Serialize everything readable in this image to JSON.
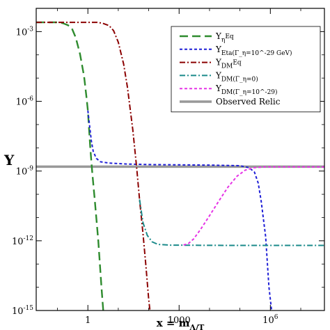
{
  "chart_data": {
    "type": "line",
    "xlabel": "x = m_Λ/T",
    "ylabel": "Y",
    "x_scale": "log",
    "y_scale": "log",
    "xlim": [
      0.02,
      60000000
    ],
    "ylim": [
      1e-15,
      0.01
    ],
    "x_ticks": [
      {
        "value": 1,
        "label": "1"
      },
      {
        "value": 1000,
        "label": "1000"
      },
      {
        "value": 1000000,
        "label": "10^6"
      }
    ],
    "y_ticks": [
      {
        "value": 0.001,
        "label": "10^-3"
      },
      {
        "value": 1e-06,
        "label": "10^-6"
      },
      {
        "value": 1e-09,
        "label": "10^-9"
      },
      {
        "value": 1e-12,
        "label": "10^-12"
      },
      {
        "value": 1e-15,
        "label": "10^-15"
      }
    ],
    "legend_position": "top-right",
    "series": [
      {
        "name": "Y_η^Eq",
        "color": "#2e8b2e",
        "dash": "12,6",
        "width": 2.4,
        "points": [
          [
            0.02,
            0.0025
          ],
          [
            0.1,
            0.0025
          ],
          [
            0.15,
            0.0023
          ],
          [
            0.22,
            0.0019
          ],
          [
            0.3,
            0.00135
          ],
          [
            0.4,
            0.00055
          ],
          [
            0.55,
            0.00011
          ],
          [
            0.75,
            1.2e-05
          ],
          [
            0.9,
            1.5e-06
          ],
          [
            1,
            4e-07
          ],
          [
            1.2,
            1e-08
          ],
          [
            1.4,
            8e-10
          ],
          [
            1.7,
            5e-11
          ],
          [
            2.2,
            1e-12
          ],
          [
            2.8,
            1e-14
          ],
          [
            3.2,
            1e-15
          ]
        ]
      },
      {
        "name": "Y_Eta(Γ_η=10^-29 GeV)",
        "color": "#1f1fd6",
        "dash": "4,3",
        "width": 2,
        "points": [
          [
            1,
            4e-07
          ],
          [
            1.15,
            8e-08
          ],
          [
            1.3,
            2e-08
          ],
          [
            1.5,
            7e-09
          ],
          [
            1.9,
            3.5e-09
          ],
          [
            2.6,
            2.5e-09
          ],
          [
            5,
            2.2e-09
          ],
          [
            20,
            2e-09
          ],
          [
            100,
            1.9e-09
          ],
          [
            1000,
            1.85e-09
          ],
          [
            10000,
            1.8e-09
          ],
          [
            100000,
            1.7e-09
          ],
          [
            200000,
            1.4e-09
          ],
          [
            300000,
            9e-10
          ],
          [
            400000,
            3e-10
          ],
          [
            500000,
            5e-11
          ],
          [
            700000,
            1.5e-12
          ],
          [
            900000,
            1e-14
          ],
          [
            1100000,
            1e-15
          ]
        ]
      },
      {
        "name": "Y_DM^Eq",
        "color": "#8b0000",
        "dash": "8,3,2,3",
        "width": 2,
        "points": [
          [
            0.02,
            0.0025
          ],
          [
            2,
            0.0025
          ],
          [
            3,
            0.0023
          ],
          [
            5,
            0.0018
          ],
          [
            7,
            0.0011
          ],
          [
            10,
            0.00035
          ],
          [
            15,
            4e-05
          ],
          [
            20,
            4e-06
          ],
          [
            30,
            6e-08
          ],
          [
            40,
            1.5e-09
          ],
          [
            50,
            6e-11
          ],
          [
            65,
            2e-12
          ],
          [
            80,
            1e-13
          ],
          [
            100,
            3e-15
          ],
          [
            110,
            1e-15
          ]
        ]
      },
      {
        "name": "Y_DM(Γ_η=0)",
        "color": "#1a8a8a",
        "dash": "8,3,2,3",
        "width": 2,
        "points": [
          [
            50,
            6e-11
          ],
          [
            65,
            6e-12
          ],
          [
            90,
            1.7e-12
          ],
          [
            130,
            9e-13
          ],
          [
            200,
            7e-13
          ],
          [
            500,
            6.5e-13
          ],
          [
            5000,
            6.4e-13
          ],
          [
            100000,
            6.3e-13
          ],
          [
            60000000,
            6.3e-13
          ]
        ]
      },
      {
        "name": "Y_DM(Γ_η=10^-29)",
        "color": "#e633e6",
        "dash": "4,3",
        "width": 2,
        "points": [
          [
            1400,
            6.6e-13
          ],
          [
            2000,
            7.5e-13
          ],
          [
            3000,
            1.2e-12
          ],
          [
            5000,
            3e-12
          ],
          [
            10000,
            1.2e-11
          ],
          [
            20000,
            5e-11
          ],
          [
            40000,
            2e-10
          ],
          [
            80000,
            6e-10
          ],
          [
            150000,
            1.1e-09
          ],
          [
            300000,
            1.4e-09
          ],
          [
            600000,
            1.5e-09
          ],
          [
            2000000,
            1.5e-09
          ],
          [
            60000000,
            1.5e-09
          ]
        ]
      },
      {
        "name": "Observed Relic",
        "color": "#999999",
        "dash": "",
        "width": 3.5,
        "points": [
          [
            0.02,
            1.55e-09
          ],
          [
            60000000,
            1.55e-09
          ]
        ]
      }
    ]
  }
}
